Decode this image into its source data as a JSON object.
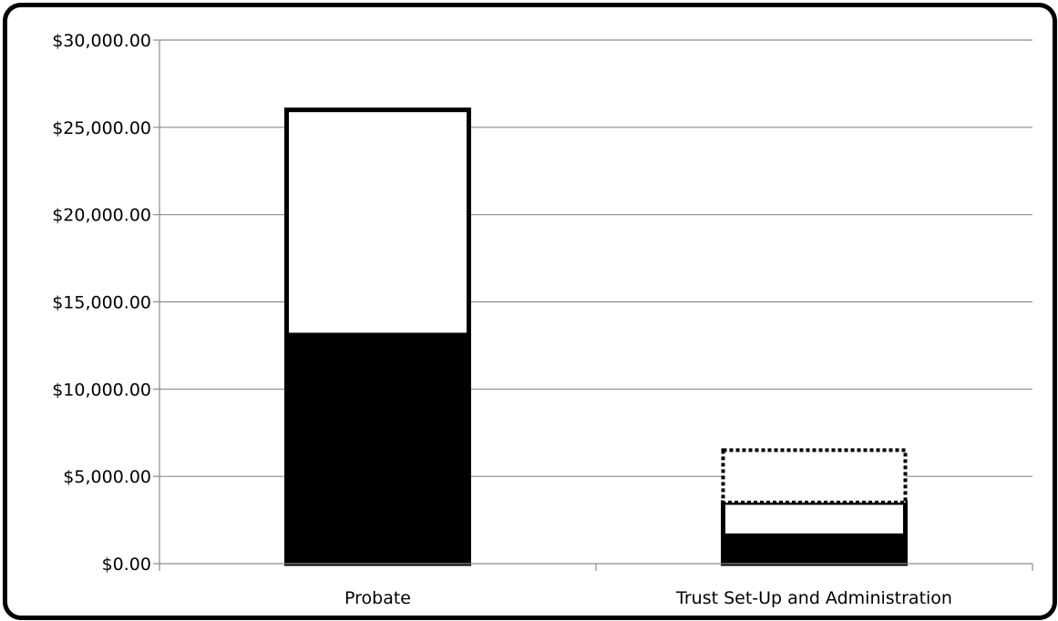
{
  "chart_data": {
    "type": "bar",
    "stacked": true,
    "categories": [
      "Probate",
      "Trust Set-Up and Administration"
    ],
    "ylim": [
      0,
      30000
    ],
    "y_ticks": [
      0,
      5000,
      10000,
      15000,
      20000,
      25000,
      30000
    ],
    "y_tick_labels": [
      "$0.00",
      "$5,000.00",
      "$10,000.00",
      "$15,000.00",
      "$20,000.00",
      "$25,000.00",
      "$30,000.00"
    ],
    "grid": true,
    "legend": "none",
    "series": [
      {
        "values": [
          13100,
          1600
        ],
        "style": "solid-black"
      },
      {
        "values": [
          12900,
          1900
        ],
        "style": "white-solid-outline"
      },
      {
        "values": [
          0,
          3000
        ],
        "style": "white-dotted-outline"
      }
    ]
  }
}
